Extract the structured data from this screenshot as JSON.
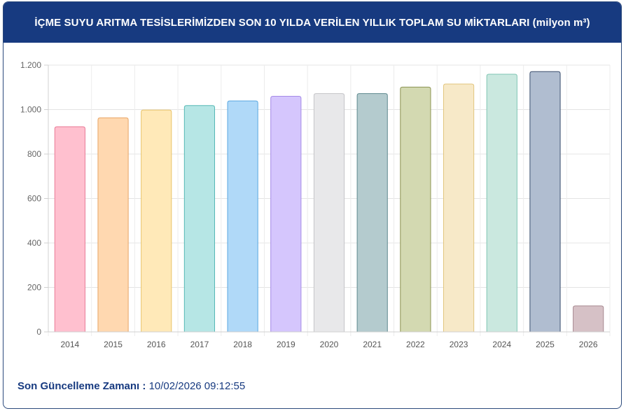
{
  "header": {
    "title": "İÇME SUYU ARITMA TESİSLERİMİZDEN SON 10 YILDA VERİLEN YILLIK TOPLAM SU MİKTARLARI (milyon m³)"
  },
  "footer": {
    "label": "Son Güncelleme Zamanı :",
    "value": "10/02/2026 09:12:55"
  },
  "chart_data": {
    "type": "bar",
    "categories": [
      "2014",
      "2015",
      "2016",
      "2017",
      "2018",
      "2019",
      "2020",
      "2021",
      "2022",
      "2023",
      "2024",
      "2025",
      "2026"
    ],
    "values": [
      923,
      963,
      998,
      1018,
      1039,
      1060,
      1072,
      1072,
      1101,
      1115,
      1159,
      1171,
      117
    ],
    "ylim": [
      0,
      1200
    ],
    "yticks": [
      0,
      200,
      400,
      600,
      800,
      1000,
      1200
    ],
    "ytick_labels": [
      "0",
      "200",
      "400",
      "600",
      "800",
      "1.000",
      "1.200"
    ],
    "grid": true,
    "colors": {
      "fill": [
        "#ffc0cf",
        "#ffd8b0",
        "#ffe9b8",
        "#b6e6e5",
        "#b0d9f8",
        "#d5c6fd",
        "#e8e8ea",
        "#b4cbce",
        "#d3d9b1",
        "#f7e9c8",
        "#cae8df",
        "#b0bdd0",
        "#d6c1c6"
      ],
      "stroke": [
        "#e87a96",
        "#e8a565",
        "#e8c36a",
        "#56b8b5",
        "#5aa8e0",
        "#a58ae6",
        "#c4c4c8",
        "#5f8a8f",
        "#8c9453",
        "#e2c57d",
        "#7fc5b3",
        "#3a4e6e",
        "#a88a91"
      ]
    }
  }
}
